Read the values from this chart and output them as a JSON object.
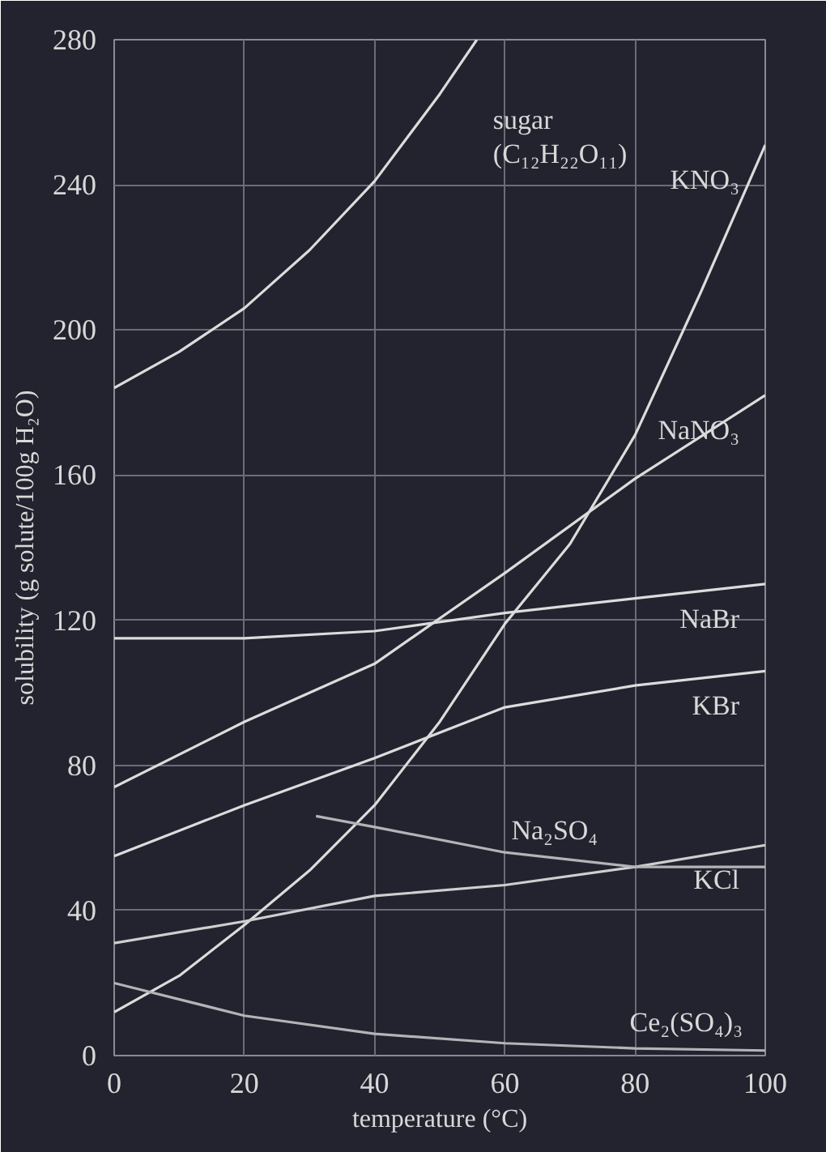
{
  "chart_data": {
    "type": "line",
    "xlabel": "temperature (°C)",
    "ylabel": "solubility (g solute/100g H₂O)",
    "xlim": [
      0,
      100
    ],
    "ylim": [
      0,
      280
    ],
    "xticks": [
      0,
      20,
      40,
      60,
      80,
      100
    ],
    "yticks": [
      0,
      40,
      80,
      120,
      160,
      200,
      240,
      280
    ],
    "grid": true,
    "marker": "none",
    "line_style": "solid",
    "series": [
      {
        "name": "sugar\n(C₁₂H₂₂O₁₁)",
        "color": "#dcdcdc",
        "x": [
          0,
          10,
          20,
          30,
          40,
          50,
          55.7
        ],
        "values": [
          184,
          194,
          206,
          222,
          241,
          265,
          280
        ]
      },
      {
        "name": "KNO₃",
        "color": "#dcdcdc",
        "x": [
          0,
          10,
          20,
          30,
          40,
          50,
          60,
          70,
          80,
          90,
          100
        ],
        "values": [
          12,
          22,
          36,
          51,
          69,
          92,
          119,
          141,
          171,
          210,
          251
        ]
      },
      {
        "name": "NaNO₃",
        "color": "#dcdcdc",
        "x": [
          0,
          20,
          40,
          60,
          80,
          100
        ],
        "values": [
          74,
          92,
          108,
          133,
          159,
          182
        ]
      },
      {
        "name": "NaBr",
        "color": "#dcdcdc",
        "x": [
          0,
          20,
          40,
          60,
          80,
          100
        ],
        "values": [
          115,
          115,
          117,
          122,
          126,
          130
        ]
      },
      {
        "name": "KBr",
        "color": "#dcdcdc",
        "x": [
          0,
          20,
          40,
          60,
          80,
          100
        ],
        "values": [
          55,
          69,
          82,
          96,
          102,
          106
        ]
      },
      {
        "name": "KCl",
        "color": "#cfcfcf",
        "x": [
          0,
          20,
          40,
          60,
          80,
          100
        ],
        "values": [
          31,
          37,
          44,
          47,
          52,
          58
        ]
      },
      {
        "name": "Na₂SO₄",
        "color": "#b4b4b8",
        "x": [
          31,
          40,
          60,
          80,
          100
        ],
        "values": [
          66,
          63,
          56,
          52,
          52
        ]
      },
      {
        "name": "Ce₂(SO₄)₃",
        "color": "#b4b4b8",
        "x": [
          0,
          20,
          40,
          60,
          80,
          100
        ],
        "values": [
          20,
          11,
          6,
          3.4,
          2,
          1.4
        ]
      }
    ]
  }
}
